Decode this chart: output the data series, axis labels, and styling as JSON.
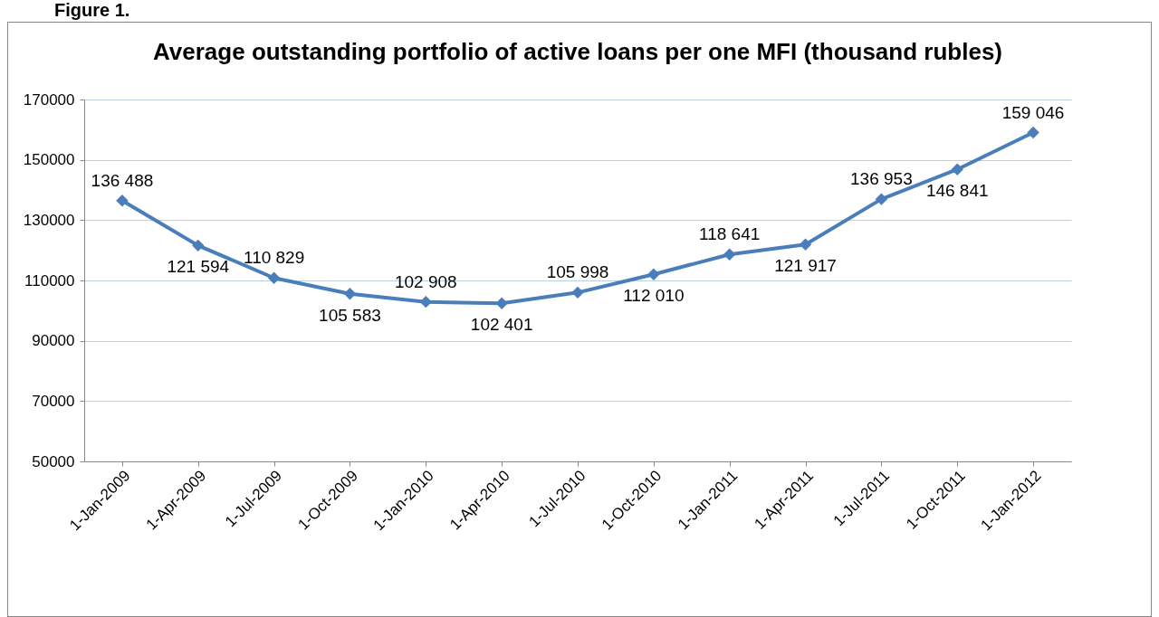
{
  "chart_data": {
    "type": "line",
    "title": "Average outstanding portfolio of active loans per one MFI (thousand rubles)",
    "annotations": [
      "Figure 1."
    ],
    "categories": [
      "1-Jan-2009",
      "1-Apr-2009",
      "1-Jul-2009",
      "1-Oct-2009",
      "1-Jan-2010",
      "1-Apr-2010",
      "1-Jul-2010",
      "1-Oct-2010",
      "1-Jan-2011",
      "1-Apr-2011",
      "1-Jul-2011",
      "1-Oct-2011",
      "1-Jan-2012"
    ],
    "series": [
      {
        "color": "#4a7ebb",
        "values": [
          136488,
          121594,
          110829,
          105583,
          102908,
          102401,
          105998,
          112010,
          118641,
          121917,
          136953,
          146841,
          159046
        ],
        "value_labels": [
          "136 488",
          "121 594",
          "110 829",
          "105 583",
          "102 908",
          "102 401",
          "105 998",
          "112 010",
          "118 641",
          "121 917",
          "136 953",
          "146 841",
          "159 046"
        ]
      }
    ],
    "ylim": [
      50000,
      170000
    ],
    "yticks": [
      50000,
      70000,
      90000,
      110000,
      130000,
      150000,
      170000
    ],
    "grid": "y",
    "marker": "diamond",
    "line_style": "solid"
  }
}
